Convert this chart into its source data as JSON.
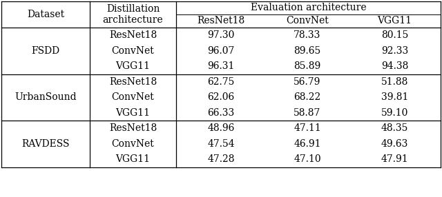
{
  "datasets": [
    "FSDD",
    "UrbanSound",
    "RAVDESS"
  ],
  "distill_archs": [
    "ResNet18",
    "ConvNet",
    "VGG11"
  ],
  "eval_archs": [
    "ResNet18",
    "ConvNet",
    "VGG11"
  ],
  "data": {
    "FSDD": {
      "ResNet18": [
        "97.30",
        "78.33",
        "80.15"
      ],
      "ConvNet": [
        "96.07",
        "89.65",
        "92.33"
      ],
      "VGG11": [
        "96.31",
        "85.89",
        "94.38"
      ]
    },
    "UrbanSound": {
      "ResNet18": [
        "62.75",
        "56.79",
        "51.88"
      ],
      "ConvNet": [
        "62.06",
        "68.22",
        "39.81"
      ],
      "VGG11": [
        "66.33",
        "58.87",
        "59.10"
      ]
    },
    "RAVDESS": {
      "ResNet18": [
        "48.96",
        "47.11",
        "48.35"
      ],
      "ConvNet": [
        "47.54",
        "46.91",
        "49.63"
      ],
      "VGG11": [
        "47.28",
        "47.10",
        "47.91"
      ]
    }
  },
  "font_size": 10,
  "font_family": "serif",
  "fig_width": 6.4,
  "fig_height": 2.86
}
